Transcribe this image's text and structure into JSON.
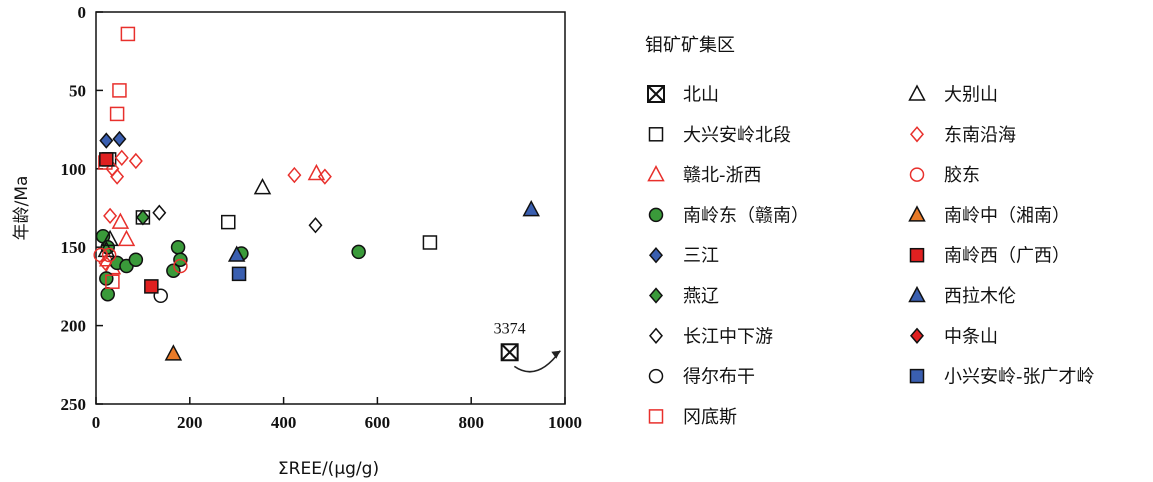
{
  "chart_data": {
    "type": "scatter",
    "xlabel": "ΣREE/(μg/g)",
    "ylabel": "年龄/Ma",
    "xlim": [
      0,
      1000
    ],
    "ylim": [
      0,
      250
    ],
    "y_inverted": true,
    "x_ticks": [
      0,
      200,
      400,
      600,
      800,
      1000
    ],
    "y_ticks": [
      0,
      50,
      100,
      150,
      200,
      250
    ],
    "grid": false,
    "legend_title": "钼矿矿集区",
    "legend_position": "right",
    "annotations": [
      {
        "text": "3374",
        "x": 882,
        "y": 205
      },
      {
        "arrow_from": [
          892,
          226
        ],
        "arrow_to": [
          990,
          216
        ]
      }
    ],
    "series": [
      {
        "name": "北山",
        "marker": "boxx",
        "color": "#111111",
        "fill": "none",
        "points": [
          [
            882,
            217
          ]
        ]
      },
      {
        "name": "大兴安岭北段",
        "marker": "square",
        "color": "#111111",
        "fill": "none",
        "points": [
          [
            100,
            131
          ],
          [
            282,
            134
          ],
          [
            712,
            147
          ],
          [
            28,
            94
          ]
        ]
      },
      {
        "name": "赣北-浙西",
        "marker": "triangle",
        "color": "#e8302c",
        "fill": "none",
        "points": [
          [
            470,
            103
          ],
          [
            52,
            134
          ],
          [
            65,
            145
          ],
          [
            25,
            158
          ],
          [
            35,
            163
          ]
        ]
      },
      {
        "name": "南岭东（赣南）",
        "marker": "circle",
        "color": "#111111",
        "fill": "#3a9a3a",
        "points": [
          [
            15,
            143
          ],
          [
            25,
            150
          ],
          [
            22,
            170
          ],
          [
            25,
            180
          ],
          [
            45,
            160
          ],
          [
            65,
            162
          ],
          [
            85,
            158
          ],
          [
            165,
            165
          ],
          [
            175,
            150
          ],
          [
            180,
            158
          ],
          [
            310,
            154
          ],
          [
            560,
            153
          ]
        ]
      },
      {
        "name": "三江",
        "marker": "diamond",
        "color": "#111111",
        "fill": "#3a5fb0",
        "points": [
          [
            22,
            82
          ],
          [
            50,
            81
          ]
        ]
      },
      {
        "name": "燕辽",
        "marker": "diamond",
        "color": "#111111",
        "fill": "#3a9a3a",
        "points": [
          [
            100,
            131
          ]
        ]
      },
      {
        "name": "长江中下游",
        "marker": "diamond",
        "color": "#111111",
        "fill": "none",
        "points": [
          [
            135,
            128
          ],
          [
            468,
            136
          ]
        ]
      },
      {
        "name": "得尔布干",
        "marker": "circle",
        "color": "#111111",
        "fill": "none",
        "points": [
          [
            138,
            181
          ]
        ]
      },
      {
        "name": "冈底斯",
        "marker": "square",
        "color": "#e8302c",
        "fill": "none",
        "points": [
          [
            68,
            14
          ],
          [
            50,
            50
          ],
          [
            45,
            65
          ],
          [
            35,
            172
          ],
          [
            20,
            96
          ]
        ]
      },
      {
        "name": "大别山",
        "marker": "triangle",
        "color": "#111111",
        "fill": "none",
        "points": [
          [
            355,
            112
          ],
          [
            22,
            152
          ],
          [
            30,
            145
          ]
        ]
      },
      {
        "name": "东南沿海",
        "marker": "diamond",
        "color": "#e8302c",
        "fill": "none",
        "points": [
          [
            423,
            104
          ],
          [
            488,
            105
          ],
          [
            55,
            93
          ],
          [
            85,
            95
          ],
          [
            45,
            105
          ],
          [
            35,
            100
          ],
          [
            30,
            130
          ],
          [
            20,
            160
          ]
        ]
      },
      {
        "name": "胶东",
        "marker": "circle",
        "color": "#e8302c",
        "fill": "none",
        "points": [
          [
            10,
            155
          ],
          [
            28,
            155
          ],
          [
            180,
            162
          ]
        ]
      },
      {
        "name": "南岭中（湘南）",
        "marker": "triangle",
        "color": "#111111",
        "fill": "#e87a28",
        "points": [
          [
            165,
            218
          ]
        ]
      },
      {
        "name": "南岭西（广西）",
        "marker": "square",
        "color": "#111111",
        "fill": "#e02020",
        "points": [
          [
            22,
            94
          ],
          [
            118,
            175
          ]
        ]
      },
      {
        "name": "西拉木伦",
        "marker": "triangle",
        "color": "#111111",
        "fill": "#3a5fb0",
        "points": [
          [
            928,
            126
          ],
          [
            300,
            155
          ]
        ]
      },
      {
        "name": "中条山",
        "marker": "diamond",
        "color": "#111111",
        "fill": "#e02020",
        "points": []
      },
      {
        "name": "小兴安岭-张广才岭",
        "marker": "square",
        "color": "#111111",
        "fill": "#3a5fb0",
        "points": [
          [
            305,
            167
          ]
        ]
      }
    ]
  }
}
